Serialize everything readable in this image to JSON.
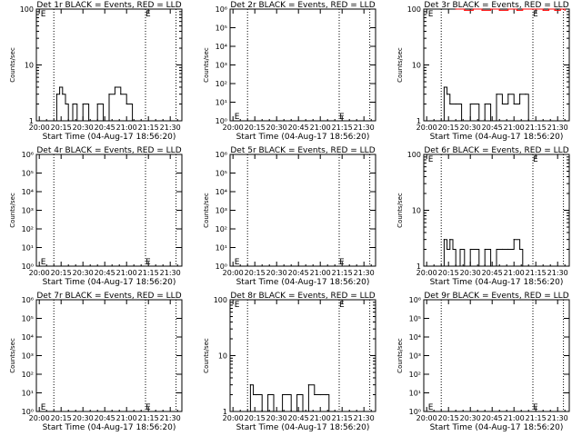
{
  "colors": {
    "events": "#000000",
    "lld": "#ff0000",
    "background": "#ffffff",
    "axes": "#000000"
  },
  "chart_data": [
    {
      "type": "line",
      "title": "Det 1r BLACK = Events, RED = LLD",
      "xlabel": "Start Time (04-Aug-17 18:56:20)",
      "ylabel": "Counts/sec",
      "yscale": "log",
      "ylim": [
        1,
        100
      ],
      "ytick_labels": [
        "1",
        "10",
        "100"
      ],
      "xtick_labels": [
        "20:00",
        "20:15",
        "20:30",
        "20:45",
        "21:00",
        "21:15",
        "21:30"
      ],
      "dotted_lines": [
        "20:10",
        "21:13",
        "21:34"
      ],
      "markers": [
        {
          "text": "E",
          "x": "20:01",
          "y": 100
        },
        {
          "text": "E",
          "x": "21:13",
          "y": 100
        }
      ],
      "series": [
        {
          "name": "Events",
          "color": "#000000",
          "x": [
            "20:10",
            "20:12",
            "20:14",
            "20:16",
            "20:18",
            "20:20",
            "20:23",
            "20:26",
            "20:30",
            "20:34",
            "20:40",
            "20:44",
            "20:48",
            "20:52",
            "20:56",
            "21:00",
            "21:04",
            "21:06"
          ],
          "y": [
            1,
            3,
            4,
            3,
            2,
            1,
            2,
            1,
            2,
            1,
            2,
            1,
            3,
            4,
            3,
            2,
            1,
            1
          ]
        }
      ]
    },
    {
      "type": "line",
      "title": "Det 2r BLACK = Events, RED = LLD",
      "xlabel": "Start Time (04-Aug-17 18:56:20)",
      "ylabel": "Counts/sec",
      "yscale": "log",
      "ylim": [
        1,
        1000000
      ],
      "ytick_labels": [
        "10⁰",
        "10¹",
        "10²",
        "10³",
        "10⁴",
        "10⁵",
        "10⁶"
      ],
      "xtick_labels": [
        "20:00",
        "20:15",
        "20:30",
        "20:45",
        "21:00",
        "21:15",
        "21:30"
      ],
      "dotted_lines": [
        "20:10",
        "21:13",
        "21:34"
      ],
      "markers": [
        {
          "text": "E",
          "x": "20:01",
          "y": 2
        },
        {
          "text": "E",
          "x": "21:13",
          "y": 2
        }
      ],
      "series": []
    },
    {
      "type": "line",
      "title": "Det 3r BLACK = Events, RED = LLD",
      "xlabel": "Start Time (04-Aug-17 18:56:20)",
      "ylabel": "Counts/sec",
      "yscale": "log",
      "ylim": [
        1,
        100
      ],
      "ytick_labels": [
        "1",
        "10",
        "100"
      ],
      "xtick_labels": [
        "20:00",
        "20:15",
        "20:30",
        "20:45",
        "21:00",
        "21:15",
        "21:30"
      ],
      "dotted_lines": [
        "20:10",
        "21:13",
        "21:34"
      ],
      "markers": [
        {
          "text": "E",
          "x": "20:01",
          "y": 100
        },
        {
          "text": "E",
          "x": "21:13",
          "y": 100
        }
      ],
      "series": [
        {
          "name": "Events",
          "color": "#000000",
          "x": [
            "20:10",
            "20:12",
            "20:14",
            "20:16",
            "20:20",
            "20:24",
            "20:30",
            "20:36",
            "20:40",
            "20:44",
            "20:48",
            "20:52",
            "20:56",
            "21:00",
            "21:04",
            "21:08",
            "21:10"
          ],
          "y": [
            1,
            4,
            3,
            2,
            2,
            1,
            2,
            1,
            2,
            1,
            3,
            2,
            3,
            2,
            3,
            3,
            1
          ]
        },
        {
          "name": "LLD",
          "color": "#ff0000",
          "x": [
            "20:20",
            "20:26",
            "20:32",
            "20:38",
            "20:44",
            "20:50",
            "20:56",
            "21:02",
            "21:06",
            "21:16",
            "21:20",
            "21:24",
            "21:28",
            "21:32",
            "21:35"
          ],
          "y": [
            100,
            95,
            100,
            95,
            100,
            95,
            100,
            95,
            100,
            100,
            95,
            100,
            95,
            100,
            95
          ]
        }
      ]
    },
    {
      "type": "line",
      "title": "Det 4r BLACK = Events, RED = LLD",
      "xlabel": "Start Time (04-Aug-17 18:56:20)",
      "ylabel": "Counts/sec",
      "yscale": "log",
      "ylim": [
        1,
        1000000
      ],
      "ytick_labels": [
        "10⁰",
        "10¹",
        "10²",
        "10³",
        "10⁴",
        "10⁵",
        "10⁶"
      ],
      "xtick_labels": [
        "20:00",
        "20:15",
        "20:30",
        "20:45",
        "21:00",
        "21:15",
        "21:30"
      ],
      "dotted_lines": [
        "20:10",
        "21:13",
        "21:34"
      ],
      "markers": [
        {
          "text": "E",
          "x": "20:01",
          "y": 2
        },
        {
          "text": "E",
          "x": "21:13",
          "y": 2
        }
      ],
      "series": []
    },
    {
      "type": "line",
      "title": "Det 5r BLACK = Events, RED = LLD",
      "xlabel": "Start Time (04-Aug-17 18:56:20)",
      "ylabel": "Counts/sec",
      "yscale": "log",
      "ylim": [
        1,
        1000000
      ],
      "ytick_labels": [
        "10⁰",
        "10¹",
        "10²",
        "10³",
        "10⁴",
        "10⁵",
        "10⁶"
      ],
      "xtick_labels": [
        "20:00",
        "20:15",
        "20:30",
        "20:45",
        "21:00",
        "21:15",
        "21:30"
      ],
      "dotted_lines": [
        "20:10",
        "21:13",
        "21:34"
      ],
      "markers": [
        {
          "text": "E",
          "x": "20:01",
          "y": 2
        },
        {
          "text": "E",
          "x": "21:13",
          "y": 2
        }
      ],
      "series": []
    },
    {
      "type": "line",
      "title": "Det 6r BLACK = Events, RED = LLD",
      "xlabel": "Start Time (04-Aug-17 18:56:20)",
      "ylabel": "Counts/sec",
      "yscale": "log",
      "ylim": [
        1,
        100
      ],
      "ytick_labels": [
        "1",
        "10",
        "100"
      ],
      "xtick_labels": [
        "20:00",
        "20:15",
        "20:30",
        "20:45",
        "21:00",
        "21:15",
        "21:30"
      ],
      "dotted_lines": [
        "20:10",
        "21:13",
        "21:34"
      ],
      "markers": [
        {
          "text": "E",
          "x": "20:01",
          "y": 100
        },
        {
          "text": "E",
          "x": "21:13",
          "y": 100
        }
      ],
      "series": [
        {
          "name": "Events",
          "color": "#000000",
          "x": [
            "20:10",
            "20:12",
            "20:14",
            "20:16",
            "20:18",
            "20:20",
            "20:23",
            "20:26",
            "20:30",
            "20:36",
            "20:40",
            "20:44",
            "20:48",
            "20:52",
            "20:56",
            "21:00",
            "21:04",
            "21:06"
          ],
          "y": [
            1,
            3,
            2,
            3,
            2,
            1,
            2,
            1,
            2,
            1,
            2,
            1,
            2,
            2,
            2,
            3,
            2,
            1
          ]
        }
      ]
    },
    {
      "type": "line",
      "title": "Det 7r BLACK = Events, RED = LLD",
      "xlabel": "Start Time (04-Aug-17 18:56:20)",
      "ylabel": "Counts/sec",
      "yscale": "log",
      "ylim": [
        1,
        1000000
      ],
      "ytick_labels": [
        "10⁰",
        "10¹",
        "10²",
        "10³",
        "10⁴",
        "10⁵",
        "10⁶"
      ],
      "xtick_labels": [
        "20:00",
        "20:15",
        "20:30",
        "20:45",
        "21:00",
        "21:15",
        "21:30"
      ],
      "dotted_lines": [
        "20:10",
        "21:13",
        "21:34"
      ],
      "markers": [
        {
          "text": "E",
          "x": "20:01",
          "y": 2
        },
        {
          "text": "E",
          "x": "21:13",
          "y": 2
        }
      ],
      "series": []
    },
    {
      "type": "line",
      "title": "Det 8r BLACK = Events, RED = LLD",
      "xlabel": "Start Time (04-Aug-17 18:56:20)",
      "ylabel": "Counts/sec",
      "yscale": "log",
      "ylim": [
        1,
        100
      ],
      "ytick_labels": [
        "1",
        "10",
        "100"
      ],
      "xtick_labels": [
        "20:00",
        "20:15",
        "20:30",
        "20:45",
        "21:00",
        "21:15",
        "21:30"
      ],
      "dotted_lines": [
        "20:10",
        "21:13",
        "21:34"
      ],
      "markers": [
        {
          "text": "E",
          "x": "20:01",
          "y": 100
        },
        {
          "text": "E",
          "x": "21:13",
          "y": 100
        }
      ],
      "series": [
        {
          "name": "Events",
          "color": "#000000",
          "x": [
            "20:10",
            "20:12",
            "20:14",
            "20:16",
            "20:20",
            "20:24",
            "20:28",
            "20:34",
            "20:40",
            "20:44",
            "20:48",
            "20:52",
            "20:56",
            "21:00",
            "21:04",
            "21:06"
          ],
          "y": [
            1,
            3,
            2,
            2,
            1,
            2,
            1,
            2,
            1,
            2,
            1,
            3,
            2,
            2,
            2,
            1
          ]
        }
      ]
    },
    {
      "type": "line",
      "title": "Det 9r BLACK = Events, RED = LLD",
      "xlabel": "Start Time (04-Aug-17 18:56:20)",
      "ylabel": "Counts/sec",
      "yscale": "log",
      "ylim": [
        1,
        1000000
      ],
      "ytick_labels": [
        "10⁰",
        "10¹",
        "10²",
        "10³",
        "10⁴",
        "10⁵",
        "10⁶"
      ],
      "xtick_labels": [
        "20:00",
        "20:15",
        "20:30",
        "20:45",
        "21:00",
        "21:15",
        "21:30"
      ],
      "dotted_lines": [
        "20:10",
        "21:13",
        "21:34"
      ],
      "markers": [
        {
          "text": "E",
          "x": "20:01",
          "y": 2
        },
        {
          "text": "E",
          "x": "21:13",
          "y": 2
        }
      ],
      "series": []
    }
  ]
}
